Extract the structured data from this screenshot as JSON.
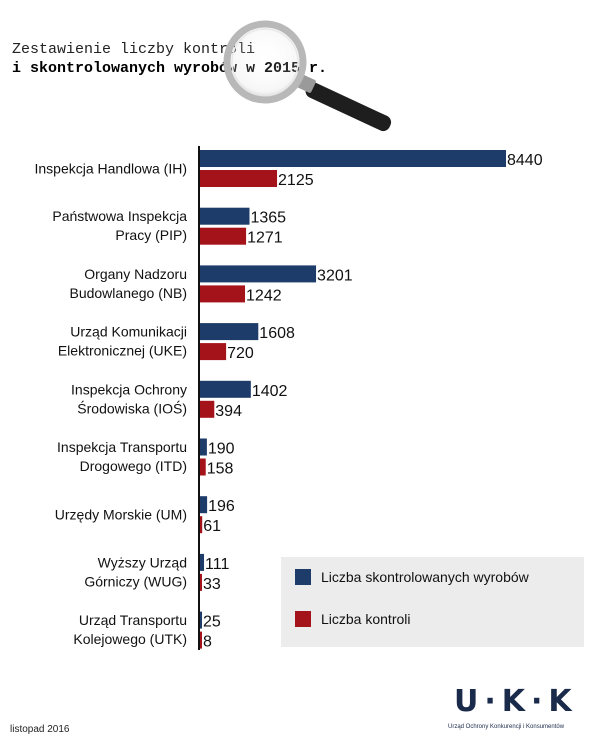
{
  "title": {
    "line1": "Zestawienie liczby kontroli",
    "line2": "i skontrolowanych wyrobów w 2015 r."
  },
  "colors": {
    "products": "#1d3c6a",
    "controls": "#a5131a"
  },
  "chart_data": {
    "type": "bar",
    "orientation": "horizontal",
    "categories": [
      [
        "Inspekcja Handlowa (IH)"
      ],
      [
        "Państwowa Inspekcja",
        "Pracy (PIP)"
      ],
      [
        "Organy Nadzoru",
        "Budowlanego (NB)"
      ],
      [
        "Urząd Komunikacji",
        "Elektronicznej (UKE)"
      ],
      [
        "Inspekcja Ochrony",
        "Środowiska (IOŚ)"
      ],
      [
        "Inspekcja Transportu",
        "Drogowego (ITD)"
      ],
      [
        "Urzędy Morskie (UM)"
      ],
      [
        "Wyższy Urząd",
        "Górniczy (WUG)"
      ],
      [
        "Urząd Transportu",
        "Kolejowego (UTK)"
      ]
    ],
    "series": [
      {
        "name": "Liczba skontrolowanych wyrobów",
        "values": [
          8440,
          1365,
          3201,
          1608,
          1402,
          190,
          196,
          111,
          25
        ]
      },
      {
        "name": "Liczba kontroli",
        "values": [
          2125,
          1271,
          1242,
          720,
          394,
          158,
          61,
          33,
          8
        ]
      }
    ],
    "xlim": [
      0,
      8440
    ],
    "grid": false,
    "legend": "bottom-right"
  },
  "legend": {
    "products_label": "Liczba skontrolowanych wyrobów",
    "controls_label": "Liczba kontroli"
  },
  "footer": {
    "date": "listopad 2016",
    "logo_text": "U·K·K",
    "logo_caption": "Urząd Ochrony Konkurencji i Konsumentów"
  }
}
